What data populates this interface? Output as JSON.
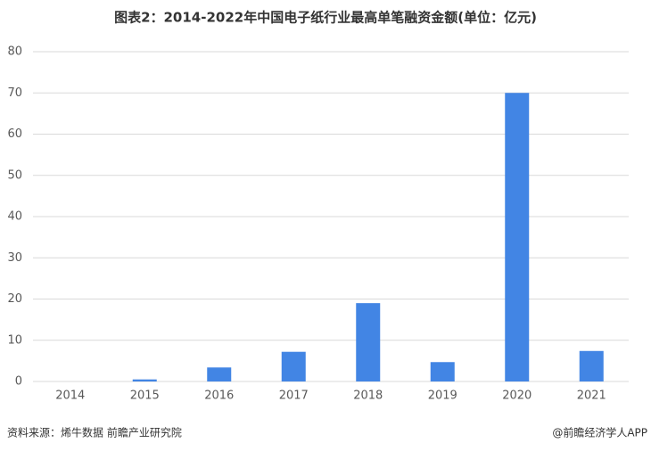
{
  "chart_data": {
    "type": "bar",
    "title": "图表2：2014-2022年中国电子纸行业最高单笔融资金额(单位：亿元)",
    "categories": [
      "2014",
      "2015",
      "2016",
      "2017",
      "2018",
      "2019",
      "2020",
      "2021"
    ],
    "values": [
      0,
      0.5,
      3.4,
      7.2,
      19,
      4.7,
      70,
      7.4
    ],
    "color": "#4285e4",
    "ylim": [
      0,
      80
    ],
    "yticks": [
      0,
      10,
      20,
      30,
      40,
      50,
      60,
      70,
      80
    ],
    "grid": true,
    "source": "资料来源：烯牛数据 前瞻产业研究院",
    "credit": "@前瞻经济学人APP"
  }
}
